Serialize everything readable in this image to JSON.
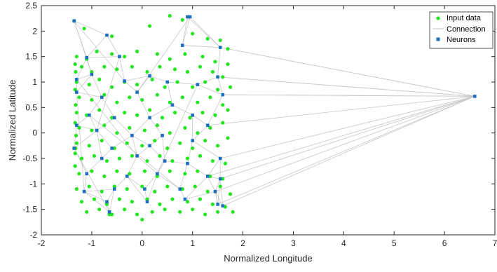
{
  "chart_data": {
    "type": "scatter",
    "title": "",
    "xlabel": "Normalized Longitude",
    "ylabel": "Normalized Latitude",
    "xlim": [
      -2,
      7
    ],
    "ylim": [
      -2,
      2.5
    ],
    "xticks": [
      -2,
      -1,
      0,
      1,
      2,
      3,
      4,
      5,
      6,
      7
    ],
    "yticks": [
      -2,
      -1.5,
      -1,
      -0.5,
      0,
      0.5,
      1,
      1.5,
      2,
      2.5
    ],
    "xtick_labels": [
      "-2",
      "-1",
      "0",
      "1",
      "2",
      "3",
      "4",
      "5",
      "6",
      "7"
    ],
    "ytick_labels": [
      "-2",
      "-1.5",
      "-1",
      "-0.5",
      "0",
      "0.5",
      "1",
      "1.5",
      "2",
      "2.5"
    ],
    "grid": false,
    "legend_position": "top-right",
    "colors": {
      "input": "#22e61f",
      "connection": "#c8c8c8",
      "neuron": "#1f6fc0",
      "axis": "#262626"
    },
    "series": [
      {
        "name": "Input data",
        "marker": "dot",
        "points": [
          [
            -1.35,
            2.2
          ],
          [
            -1.15,
            2.05
          ],
          [
            -0.6,
            1.9
          ],
          [
            0.15,
            2.1
          ],
          [
            0.55,
            2.3
          ],
          [
            0.8,
            2.22
          ],
          [
            1.0,
            1.95
          ],
          [
            1.3,
            1.85
          ],
          [
            1.55,
            1.82
          ],
          [
            1.7,
            1.65
          ],
          [
            -1.3,
            1.5
          ],
          [
            -1.1,
            1.45
          ],
          [
            -0.9,
            1.6
          ],
          [
            -0.6,
            1.55
          ],
          [
            -0.35,
            1.5
          ],
          [
            -0.1,
            1.6
          ],
          [
            0.3,
            1.55
          ],
          [
            0.55,
            1.45
          ],
          [
            0.85,
            1.55
          ],
          [
            1.2,
            1.5
          ],
          [
            1.45,
            1.4
          ],
          [
            1.7,
            1.35
          ],
          [
            -1.2,
            1.3
          ],
          [
            -1.0,
            1.2
          ],
          [
            -0.75,
            1.3
          ],
          [
            -0.5,
            1.25
          ],
          [
            -0.2,
            1.3
          ],
          [
            0.1,
            1.2
          ],
          [
            0.35,
            1.3
          ],
          [
            0.65,
            1.25
          ],
          [
            0.9,
            1.2
          ],
          [
            1.15,
            1.3
          ],
          [
            1.4,
            1.2
          ],
          [
            1.6,
            1.1
          ],
          [
            -1.3,
            1.0
          ],
          [
            -1.05,
            0.95
          ],
          [
            -0.85,
            1.05
          ],
          [
            -0.6,
            0.9
          ],
          [
            -0.35,
            1.0
          ],
          [
            -0.1,
            0.95
          ],
          [
            0.2,
            1.05
          ],
          [
            0.45,
            0.9
          ],
          [
            0.7,
            1.0
          ],
          [
            1.0,
            0.9
          ],
          [
            1.25,
            1.0
          ],
          [
            1.5,
            0.85
          ],
          [
            1.75,
            0.9
          ],
          [
            -1.25,
            0.7
          ],
          [
            -1.0,
            0.65
          ],
          [
            -0.75,
            0.75
          ],
          [
            -0.5,
            0.6
          ],
          [
            -0.25,
            0.7
          ],
          [
            0.0,
            0.65
          ],
          [
            0.3,
            0.75
          ],
          [
            0.55,
            0.6
          ],
          [
            0.8,
            0.7
          ],
          [
            1.1,
            0.6
          ],
          [
            1.35,
            0.7
          ],
          [
            1.6,
            0.55
          ],
          [
            -1.3,
            0.4
          ],
          [
            -1.1,
            0.35
          ],
          [
            -0.85,
            0.45
          ],
          [
            -0.6,
            0.3
          ],
          [
            -0.35,
            0.4
          ],
          [
            -0.1,
            0.35
          ],
          [
            0.15,
            0.45
          ],
          [
            0.4,
            0.3
          ],
          [
            0.65,
            0.4
          ],
          [
            0.95,
            0.3
          ],
          [
            1.2,
            0.4
          ],
          [
            1.45,
            0.35
          ],
          [
            1.7,
            0.45
          ],
          [
            -1.25,
            0.1
          ],
          [
            -1.0,
            0.05
          ],
          [
            -0.75,
            0.15
          ],
          [
            -0.5,
            0.0
          ],
          [
            -0.25,
            0.1
          ],
          [
            0.05,
            0.05
          ],
          [
            0.3,
            0.15
          ],
          [
            0.55,
            0.0
          ],
          [
            0.85,
            0.1
          ],
          [
            1.1,
            0.0
          ],
          [
            1.35,
            0.1
          ],
          [
            1.6,
            0.2
          ],
          [
            -1.3,
            -0.2
          ],
          [
            -1.05,
            -0.25
          ],
          [
            -0.8,
            -0.15
          ],
          [
            -0.55,
            -0.3
          ],
          [
            -0.3,
            -0.2
          ],
          [
            0.0,
            -0.25
          ],
          [
            0.25,
            -0.15
          ],
          [
            0.5,
            -0.3
          ],
          [
            0.75,
            -0.2
          ],
          [
            1.0,
            -0.3
          ],
          [
            1.25,
            -0.15
          ],
          [
            1.5,
            -0.25
          ],
          [
            1.7,
            -0.1
          ],
          [
            -1.2,
            -0.5
          ],
          [
            -0.95,
            -0.45
          ],
          [
            -0.7,
            -0.55
          ],
          [
            -0.45,
            -0.5
          ],
          [
            -0.2,
            -0.45
          ],
          [
            0.1,
            -0.55
          ],
          [
            0.35,
            -0.45
          ],
          [
            0.6,
            -0.55
          ],
          [
            0.9,
            -0.5
          ],
          [
            1.15,
            -0.45
          ],
          [
            1.4,
            -0.55
          ],
          [
            1.65,
            -0.6
          ],
          [
            -1.25,
            -0.8
          ],
          [
            -1.0,
            -0.75
          ],
          [
            -0.75,
            -0.85
          ],
          [
            -0.5,
            -0.75
          ],
          [
            -0.25,
            -0.8
          ],
          [
            0.05,
            -0.75
          ],
          [
            0.3,
            -0.85
          ],
          [
            0.55,
            -0.75
          ],
          [
            0.85,
            -0.8
          ],
          [
            1.1,
            -0.75
          ],
          [
            1.35,
            -0.85
          ],
          [
            1.6,
            -0.9
          ],
          [
            -1.3,
            -1.1
          ],
          [
            -1.05,
            -1.05
          ],
          [
            -0.8,
            -1.15
          ],
          [
            -0.55,
            -1.05
          ],
          [
            -0.3,
            -1.1
          ],
          [
            0.0,
            -1.05
          ],
          [
            0.25,
            -1.15
          ],
          [
            0.5,
            -1.05
          ],
          [
            0.8,
            -1.1
          ],
          [
            1.05,
            -1.05
          ],
          [
            1.3,
            -1.15
          ],
          [
            1.55,
            -1.05
          ],
          [
            1.75,
            -1.2
          ],
          [
            -1.2,
            -1.35
          ],
          [
            -0.95,
            -1.3
          ],
          [
            -0.7,
            -1.4
          ],
          [
            -0.45,
            -1.3
          ],
          [
            -0.2,
            -1.35
          ],
          [
            0.1,
            -1.3
          ],
          [
            0.35,
            -1.4
          ],
          [
            0.6,
            -1.3
          ],
          [
            0.9,
            -1.35
          ],
          [
            1.15,
            -1.3
          ],
          [
            1.4,
            -1.4
          ],
          [
            1.65,
            -1.45
          ],
          [
            1.8,
            -1.55
          ],
          [
            -1.1,
            -1.55
          ],
          [
            -0.85,
            -1.5
          ],
          [
            -0.6,
            -1.6
          ],
          [
            -0.35,
            -1.5
          ],
          [
            -0.1,
            -1.6
          ],
          [
            0.2,
            -1.55
          ],
          [
            0.45,
            -1.5
          ],
          [
            0.75,
            -1.55
          ],
          [
            1.0,
            -1.5
          ],
          [
            1.25,
            -1.6
          ],
          [
            1.5,
            -1.55
          ],
          [
            -0.65,
            -1.6
          ],
          [
            0.0,
            -1.7
          ],
          [
            -1.33,
            1.35
          ],
          [
            -1.33,
            0.85
          ],
          [
            -1.33,
            0.2
          ],
          [
            -1.33,
            -0.4
          ],
          [
            -1.33,
            -0.65
          ],
          [
            -1.32,
            1.2
          ],
          [
            -1.32,
            0.55
          ],
          [
            -1.31,
            -0.05
          ],
          [
            -1.32,
            -0.3
          ],
          [
            -1.3,
            1.05
          ]
        ]
      },
      {
        "name": "Connection",
        "marker": "line"
      },
      {
        "name": "Neurons",
        "marker": "square",
        "points": [
          [
            -1.35,
            2.2
          ],
          [
            -0.7,
            1.92
          ],
          [
            0.9,
            2.28
          ],
          [
            0.95,
            2.28
          ],
          [
            0.8,
            1.72
          ],
          [
            1.55,
            1.68
          ],
          [
            -1.1,
            1.48
          ],
          [
            -0.45,
            1.5
          ],
          [
            1.5,
            1.1
          ],
          [
            -1.3,
            1.05
          ],
          [
            -1.0,
            1.15
          ],
          [
            -0.35,
            1.02
          ],
          [
            0.15,
            1.12
          ],
          [
            0.5,
            1.0
          ],
          [
            1.1,
            0.95
          ],
          [
            1.6,
            0.75
          ],
          [
            -1.3,
            0.8
          ],
          [
            -0.8,
            0.7
          ],
          [
            -0.1,
            0.8
          ],
          [
            0.6,
            0.55
          ],
          [
            -1.05,
            0.35
          ],
          [
            -0.55,
            0.3
          ],
          [
            0.15,
            0.3
          ],
          [
            1.0,
            0.35
          ],
          [
            -1.3,
            0.15
          ],
          [
            -0.9,
            0.05
          ],
          [
            -0.2,
            -0.05
          ],
          [
            0.4,
            -0.05
          ],
          [
            1.3,
            0.15
          ],
          [
            -1.35,
            -0.3
          ],
          [
            -0.6,
            -0.3
          ],
          [
            0.15,
            -0.25
          ],
          [
            1.0,
            -0.15
          ],
          [
            1.55,
            -0.5
          ],
          [
            -0.8,
            -0.5
          ],
          [
            -0.1,
            -0.45
          ],
          [
            0.45,
            -0.55
          ],
          [
            0.9,
            -0.6
          ],
          [
            -1.1,
            -0.8
          ],
          [
            -0.3,
            -0.85
          ],
          [
            0.3,
            -0.8
          ],
          [
            1.3,
            -0.85
          ],
          [
            1.55,
            -0.9
          ],
          [
            -1.15,
            -1.15
          ],
          [
            -0.55,
            -1.1
          ],
          [
            0.05,
            -1.1
          ],
          [
            0.75,
            -1.1
          ],
          [
            1.45,
            -1.15
          ],
          [
            -0.7,
            -1.35
          ],
          [
            0.1,
            -1.35
          ],
          [
            0.85,
            -1.3
          ],
          [
            1.5,
            -1.4
          ],
          [
            -0.65,
            -1.55
          ],
          [
            1.6,
            -1.43
          ],
          [
            6.6,
            0.72
          ]
        ]
      }
    ]
  }
}
